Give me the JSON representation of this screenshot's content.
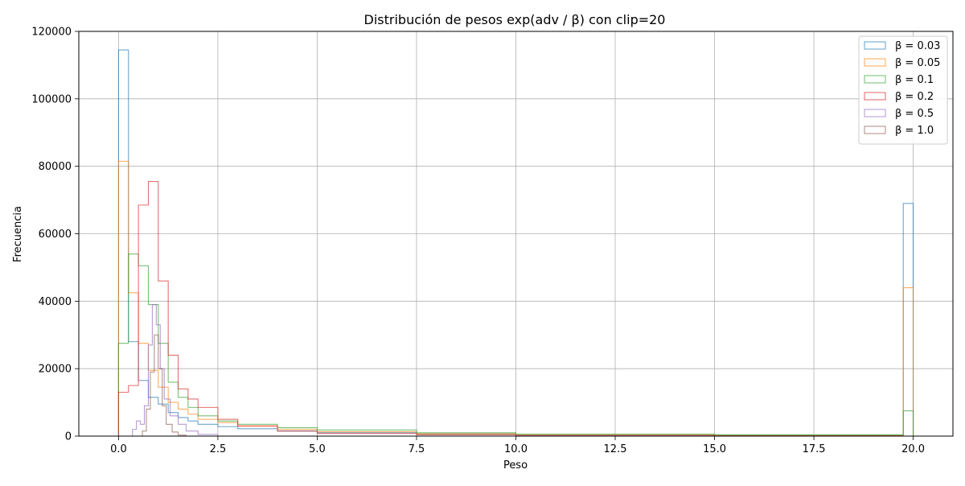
{
  "chart_data": {
    "type": "histogram",
    "title": "Distribución de pesos exp(adv / β) con clip=20",
    "xlabel": "Peso",
    "ylabel": "Frecuencia",
    "xlim": [
      -1.0,
      21.0
    ],
    "ylim": [
      0,
      120000
    ],
    "xticks": [
      0.0,
      2.5,
      5.0,
      7.5,
      10.0,
      12.5,
      15.0,
      17.5,
      20.0
    ],
    "xtick_labels": [
      "0.0",
      "2.5",
      "5.0",
      "7.5",
      "10.0",
      "12.5",
      "15.0",
      "17.5",
      "20.0"
    ],
    "yticks": [
      0,
      20000,
      40000,
      60000,
      80000,
      100000,
      120000
    ],
    "ytick_labels": [
      "0",
      "20000",
      "40000",
      "60000",
      "80000",
      "100000",
      "120000"
    ],
    "grid": true,
    "legend_position": "top-right",
    "histtype": "step",
    "series": [
      {
        "name": "β = 0.03",
        "color": "#1f77b4",
        "bins": [
          [
            0.0,
            0.25,
            114500
          ],
          [
            0.25,
            0.5,
            28000
          ],
          [
            0.5,
            0.75,
            16500
          ],
          [
            0.75,
            1.0,
            11500
          ],
          [
            1.0,
            1.25,
            9500
          ],
          [
            1.25,
            1.5,
            7000
          ],
          [
            1.5,
            1.75,
            5500
          ],
          [
            1.75,
            2.0,
            4500
          ],
          [
            2.0,
            2.5,
            3500
          ],
          [
            2.5,
            3.0,
            2800
          ],
          [
            3.0,
            4.0,
            2200
          ],
          [
            4.0,
            5.0,
            1500
          ],
          [
            5.0,
            7.5,
            1000
          ],
          [
            7.5,
            10.0,
            600
          ],
          [
            10.0,
            15.0,
            300
          ],
          [
            15.0,
            19.75,
            200
          ],
          [
            19.75,
            20.0,
            69000
          ]
        ]
      },
      {
        "name": "β = 0.05",
        "color": "#ff7f0e",
        "bins": [
          [
            0.0,
            0.25,
            81500
          ],
          [
            0.25,
            0.5,
            42500
          ],
          [
            0.5,
            0.75,
            27500
          ],
          [
            0.75,
            1.0,
            19500
          ],
          [
            1.0,
            1.25,
            14500
          ],
          [
            1.25,
            1.5,
            10000
          ],
          [
            1.5,
            1.75,
            8000
          ],
          [
            1.75,
            2.0,
            6500
          ],
          [
            2.0,
            2.5,
            5000
          ],
          [
            2.5,
            3.0,
            4000
          ],
          [
            3.0,
            4.0,
            3000
          ],
          [
            4.0,
            5.0,
            2000
          ],
          [
            5.0,
            7.5,
            1300
          ],
          [
            7.5,
            10.0,
            700
          ],
          [
            10.0,
            15.0,
            400
          ],
          [
            15.0,
            19.75,
            250
          ],
          [
            19.75,
            20.0,
            44000
          ]
        ]
      },
      {
        "name": "β = 0.1",
        "color": "#2ca02c",
        "bins": [
          [
            0.0,
            0.25,
            27500
          ],
          [
            0.25,
            0.5,
            54000
          ],
          [
            0.5,
            0.75,
            50500
          ],
          [
            0.75,
            1.0,
            39000
          ],
          [
            1.0,
            1.25,
            27500
          ],
          [
            1.25,
            1.5,
            16000
          ],
          [
            1.5,
            1.75,
            11500
          ],
          [
            1.75,
            2.0,
            8500
          ],
          [
            2.0,
            2.5,
            6000
          ],
          [
            2.5,
            3.0,
            4500
          ],
          [
            3.0,
            4.0,
            3500
          ],
          [
            4.0,
            5.0,
            2500
          ],
          [
            5.0,
            7.5,
            1800
          ],
          [
            7.5,
            10.0,
            1000
          ],
          [
            10.0,
            15.0,
            600
          ],
          [
            15.0,
            19.75,
            400
          ],
          [
            19.75,
            20.0,
            7500
          ]
        ]
      },
      {
        "name": "β = 0.2",
        "color": "#d62728",
        "bins": [
          [
            0.0,
            0.25,
            13000
          ],
          [
            0.25,
            0.5,
            15000
          ],
          [
            0.5,
            0.75,
            68500
          ],
          [
            0.75,
            1.0,
            75500
          ],
          [
            1.0,
            1.25,
            46000
          ],
          [
            1.25,
            1.5,
            24000
          ],
          [
            1.5,
            1.75,
            14000
          ],
          [
            1.75,
            2.0,
            11000
          ],
          [
            2.0,
            2.5,
            8500
          ],
          [
            2.5,
            3.0,
            5000
          ],
          [
            3.0,
            4.0,
            3000
          ],
          [
            4.0,
            5.0,
            1500
          ],
          [
            5.0,
            7.5,
            800
          ],
          [
            7.5,
            10.0,
            400
          ],
          [
            10.0,
            15.0,
            150
          ],
          [
            15.0,
            19.75,
            50
          ],
          [
            19.75,
            20.0,
            0
          ]
        ]
      },
      {
        "name": "β = 0.5",
        "color": "#9467bd",
        "bins": [
          [
            0.0,
            0.35,
            0
          ],
          [
            0.35,
            0.45,
            2000
          ],
          [
            0.45,
            0.55,
            4500
          ],
          [
            0.55,
            0.65,
            3500
          ],
          [
            0.65,
            0.75,
            9000
          ],
          [
            0.75,
            0.85,
            27000
          ],
          [
            0.85,
            0.95,
            39000
          ],
          [
            0.95,
            1.05,
            33000
          ],
          [
            1.05,
            1.15,
            20000
          ],
          [
            1.15,
            1.3,
            11000
          ],
          [
            1.3,
            1.5,
            6000
          ],
          [
            1.5,
            1.7,
            3500
          ],
          [
            1.7,
            2.0,
            1500
          ],
          [
            2.0,
            2.5,
            500
          ],
          [
            2.5,
            3.0,
            0
          ]
        ]
      },
      {
        "name": "β = 1.0",
        "color": "#8c564b",
        "bins": [
          [
            0.0,
            0.6,
            0
          ],
          [
            0.6,
            0.7,
            1500
          ],
          [
            0.7,
            0.8,
            8000
          ],
          [
            0.8,
            0.9,
            19000
          ],
          [
            0.9,
            1.0,
            30000
          ],
          [
            1.0,
            1.1,
            20000
          ],
          [
            1.1,
            1.2,
            9000
          ],
          [
            1.2,
            1.35,
            3500
          ],
          [
            1.35,
            1.5,
            1200
          ],
          [
            1.5,
            1.7,
            300
          ],
          [
            1.7,
            2.0,
            0
          ]
        ]
      }
    ]
  }
}
